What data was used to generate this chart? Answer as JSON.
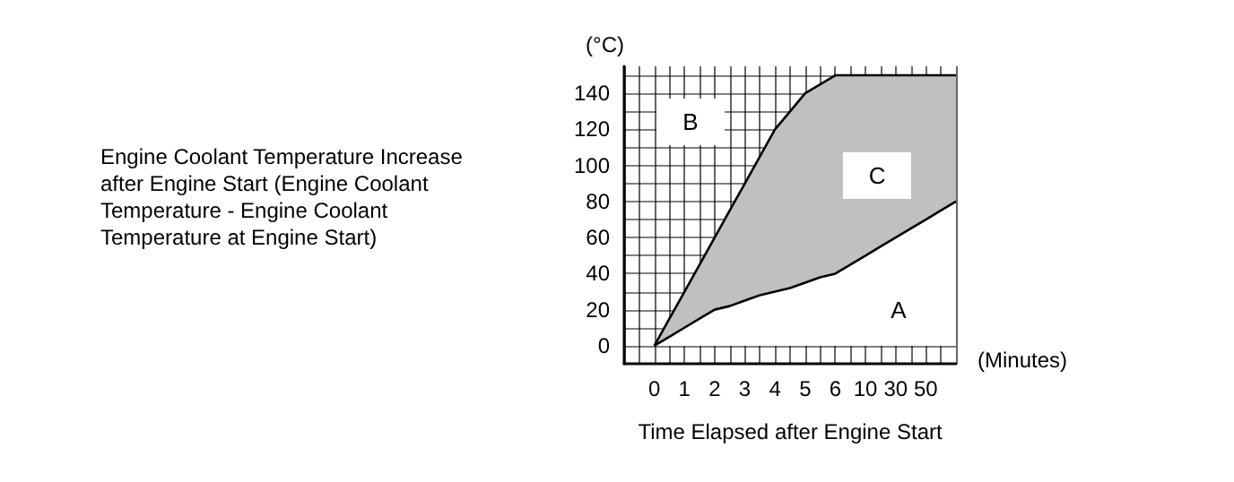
{
  "chart_data": {
    "type": "area",
    "stacked": true,
    "ylabel": "(°C)",
    "xlabel": "Time Elapsed after Engine Start",
    "annotations": [
      "Engine Coolant Temperature Increase\nafter Engine Start (Engine Coolant\nTemperature - Engine Coolant\nTemperature at Engine Start)",
      "(Minutes)",
      "B",
      "C",
      "A"
    ],
    "categories": [
      null,
      null,
      "0",
      null,
      "1",
      null,
      "2",
      null,
      "3",
      null,
      "4",
      null,
      "5",
      null,
      "6",
      null,
      "10",
      null,
      "30",
      null,
      "50",
      null,
      null
    ],
    "series": [
      {
        "color": "#ffffff",
        "values": [
          null,
          null,
          0,
          5,
          10,
          15,
          20,
          22,
          25,
          28,
          30,
          32,
          35,
          38,
          40,
          45,
          50,
          55,
          60,
          65,
          70,
          75,
          80
        ]
      },
      {
        "color": "#c0c0c0",
        "values": [
          null,
          null,
          0,
          10,
          20,
          30,
          40,
          53,
          65,
          77,
          90,
          98,
          105,
          107,
          110,
          105,
          100,
          95,
          90,
          85,
          80,
          75,
          70
        ]
      }
    ],
    "ylim": [
      -10,
      155
    ],
    "yticks": [
      0,
      {
        "value": 10,
        "label": null
      },
      20,
      {
        "value": 30,
        "label": null
      },
      40,
      {
        "value": 50,
        "label": null
      },
      60,
      {
        "value": 70,
        "label": null
      },
      80,
      {
        "value": 90,
        "label": null
      },
      100,
      {
        "value": 110,
        "label": null
      },
      120,
      {
        "value": 130,
        "label": null
      },
      140,
      {
        "value": 150,
        "label": null
      }
    ],
    "grid": true
  }
}
